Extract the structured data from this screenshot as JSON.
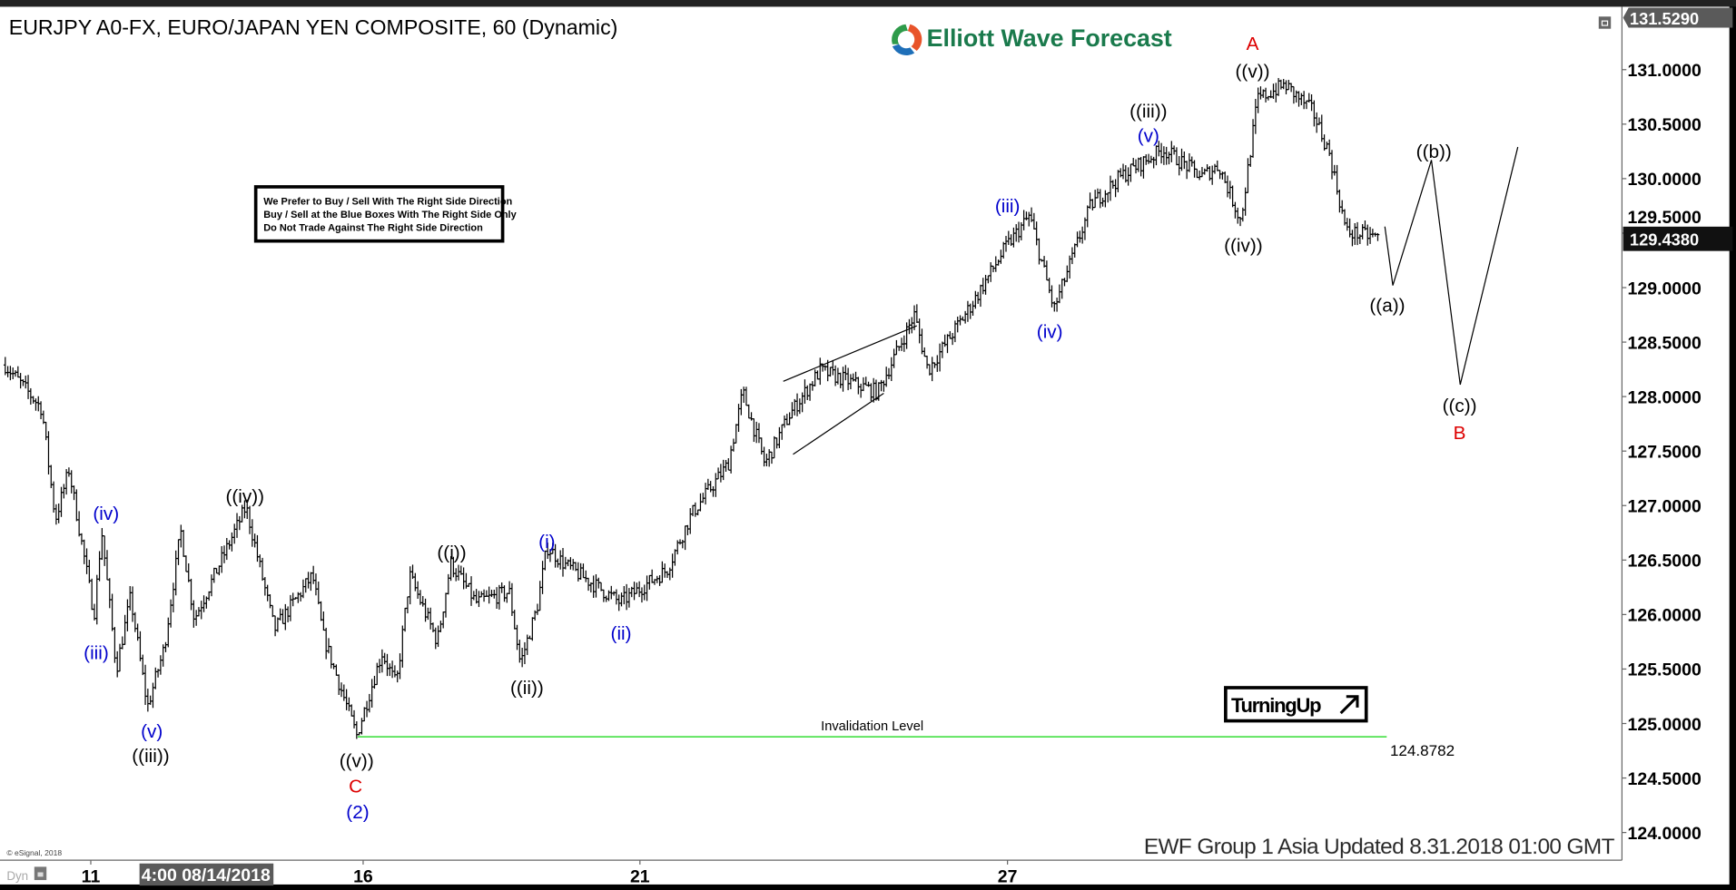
{
  "header": {
    "title": "EURJPY A0-FX, EURO/JAPAN YEN COMPOSITE, 60 (Dynamic)",
    "logo_text": "Elliott Wave Forecast",
    "restore_icon": "window-restore-icon"
  },
  "notice_box": {
    "line1": "We Prefer to Buy / Sell With The Right Side Direction",
    "line2": "Buy / Sell at the Blue Boxes With The Right Side Only",
    "line3": "Do Not Trade Against The Right Side Direction"
  },
  "badge": {
    "label": "TurningUp",
    "icon": "arrow-up-right-icon"
  },
  "footer": {
    "updated": "EWF Group 1 Asia Updated 8.31.2018 01:00 GMT",
    "copyright": "© eSignal, 2018",
    "dyn_label": "Dyn",
    "lock_icon": "lock-icon",
    "cursor_time": "4:00 08/14/2018"
  },
  "colors": {
    "wave_black": "#000000",
    "wave_blue": "#0000cc",
    "wave_red": "#dd0000",
    "invalidation": "#33dd33",
    "bars": "#000000"
  },
  "chart_data": {
    "type": "ohlc",
    "symbol": "EURJPY",
    "interval": "60",
    "x_ticks": [
      "11",
      "16",
      "21",
      "27"
    ],
    "y_ticks": [
      "124.0000",
      "124.5000",
      "125.0000",
      "125.5000",
      "126.0000",
      "126.5000",
      "127.0000",
      "127.5000",
      "128.0000",
      "128.5000",
      "129.0000",
      "129.5000",
      "130.0000",
      "130.5000",
      "131.0000"
    ],
    "ylim": [
      123.85,
      131.6
    ],
    "top_price": "131.5290",
    "last_price": "129.4380",
    "grid": false,
    "price_path": [
      [
        9.43,
        128.29
      ],
      [
        10.1,
        127.89
      ],
      [
        10.35,
        126.87
      ],
      [
        10.6,
        127.33
      ],
      [
        11.06,
        126.0
      ],
      [
        11.2,
        126.77
      ],
      [
        11.47,
        125.5
      ],
      [
        11.73,
        126.16
      ],
      [
        12.04,
        125.15
      ],
      [
        12.35,
        125.7
      ],
      [
        12.65,
        126.77
      ],
      [
        12.9,
        125.96
      ],
      [
        13.85,
        126.99
      ],
      [
        14.37,
        125.86
      ],
      [
        15.07,
        126.36
      ],
      [
        15.27,
        125.8
      ],
      [
        15.88,
        124.89
      ],
      [
        16.34,
        125.65
      ],
      [
        16.6,
        125.35
      ],
      [
        16.84,
        126.36
      ],
      [
        17.34,
        125.75
      ],
      [
        17.58,
        126.47
      ],
      [
        18.04,
        126.11
      ],
      [
        18.64,
        126.21
      ],
      [
        18.84,
        125.55
      ],
      [
        19.14,
        126.06
      ],
      [
        19.32,
        126.62
      ],
      [
        19.64,
        126.46
      ],
      [
        20.64,
        126.11
      ],
      [
        21.44,
        126.41
      ],
      [
        21.84,
        126.92
      ],
      [
        22.44,
        127.38
      ],
      [
        22.68,
        128.04
      ],
      [
        23.04,
        127.38
      ],
      [
        23.44,
        127.83
      ],
      [
        23.94,
        128.24
      ],
      [
        24.88,
        128.04
      ],
      [
        25.48,
        128.75
      ],
      [
        25.7,
        128.24
      ],
      [
        26.42,
        128.85
      ],
      [
        26.96,
        129.36
      ],
      [
        27.36,
        129.66
      ],
      [
        27.76,
        128.8
      ],
      [
        28.36,
        129.76
      ],
      [
        28.85,
        130.02
      ],
      [
        29.54,
        130.27
      ],
      [
        30.17,
        130.02
      ],
      [
        30.45,
        130.12
      ],
      [
        30.81,
        129.61
      ],
      [
        31.08,
        130.73
      ],
      [
        31.53,
        130.86
      ],
      [
        31.98,
        130.62
      ],
      [
        32.26,
        130.22
      ],
      [
        32.53,
        129.51
      ],
      [
        33.07,
        129.46
      ]
    ],
    "projection_path": [
      [
        33.16,
        129.56
      ],
      [
        33.29,
        129.02
      ],
      [
        33.92,
        130.17
      ],
      [
        34.39,
        128.11
      ],
      [
        35.33,
        130.29
      ]
    ],
    "channel_lines": [
      [
        [
          23.34,
          128.14
        ],
        [
          25.52,
          128.65
        ]
      ],
      [
        [
          23.5,
          127.47
        ],
        [
          24.98,
          128.03
        ]
      ]
    ],
    "invalidation": {
      "label": "Invalidation Level",
      "value": 124.8782,
      "value_label": "124.8782",
      "from_day": 15.9,
      "to_day": 33.19
    },
    "wave_labels": [
      {
        "text": "A",
        "color": "red",
        "day": 31.0,
        "price": 131.24
      },
      {
        "text": "((v))",
        "color": "black",
        "day": 31.0,
        "price": 130.99
      },
      {
        "text": "((iii))",
        "color": "black",
        "day": 29.3,
        "price": 130.62
      },
      {
        "text": "(v)",
        "color": "blue",
        "day": 29.3,
        "price": 130.4
      },
      {
        "text": "(iii)",
        "color": "blue",
        "day": 27.0,
        "price": 129.75
      },
      {
        "text": "((iv))",
        "color": "black",
        "day": 30.85,
        "price": 129.39
      },
      {
        "text": "(iv)",
        "color": "blue",
        "day": 27.69,
        "price": 128.6
      },
      {
        "text": "((a))",
        "color": "black",
        "day": 33.2,
        "price": 128.84
      },
      {
        "text": "((b))",
        "color": "black",
        "day": 33.96,
        "price": 130.25
      },
      {
        "text": "((c))",
        "color": "black",
        "day": 34.38,
        "price": 127.92
      },
      {
        "text": "B",
        "color": "red",
        "day": 34.38,
        "price": 127.67
      },
      {
        "text": "(iv)",
        "color": "blue",
        "day": 11.28,
        "price": 126.93
      },
      {
        "text": "((iv))",
        "color": "black",
        "day": 13.83,
        "price": 127.09
      },
      {
        "text": "((i))",
        "color": "black",
        "day": 17.6,
        "price": 126.57
      },
      {
        "text": "(i)",
        "color": "blue",
        "day": 19.32,
        "price": 126.67
      },
      {
        "text": "(ii)",
        "color": "blue",
        "day": 20.66,
        "price": 125.83
      },
      {
        "text": "(iii)",
        "color": "blue",
        "day": 11.1,
        "price": 125.65
      },
      {
        "text": "((ii))",
        "color": "black",
        "day": 18.96,
        "price": 125.33
      },
      {
        "text": "(v)",
        "color": "blue",
        "day": 12.12,
        "price": 124.93
      },
      {
        "text": "((iii))",
        "color": "black",
        "day": 12.1,
        "price": 124.74
      },
      {
        "text": "((v))",
        "color": "black",
        "day": 15.88,
        "price": 124.66
      },
      {
        "text": "C",
        "color": "red",
        "day": 15.86,
        "price": 124.43
      },
      {
        "text": "(2)",
        "color": "blue",
        "day": 15.9,
        "price": 124.19
      }
    ]
  }
}
